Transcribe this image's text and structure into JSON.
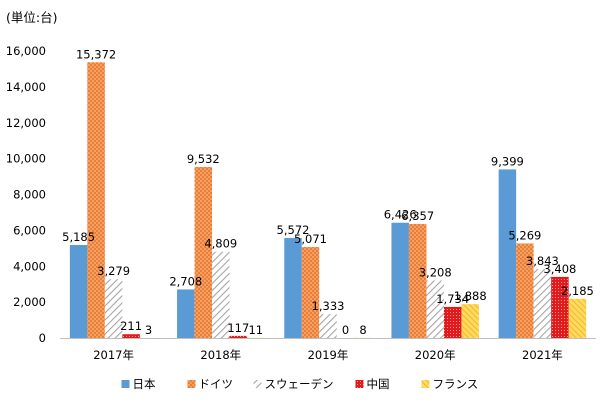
{
  "chart_data": {
    "type": "bar",
    "unit_label": "(単位:台)",
    "categories": [
      "2017年",
      "2018年",
      "2019年",
      "2020年",
      "2021年"
    ],
    "series": [
      {
        "name": "日本",
        "color": "#5b9bd5",
        "pattern": "solid",
        "values": [
          5185,
          2708,
          5572,
          6426,
          9399
        ],
        "labels": [
          "5,185",
          "2,708",
          "5,572",
          "6,426",
          "9,399"
        ]
      },
      {
        "name": "ドイツ",
        "color": "#ed7d31",
        "pattern": "dots",
        "values": [
          15372,
          9532,
          5071,
          6357,
          5269
        ],
        "labels": [
          "15,372",
          "9,532",
          "5,071",
          "6,357",
          "5,269"
        ]
      },
      {
        "name": "スウェーデン",
        "color": "#a5a5a5",
        "pattern": "diagonal",
        "values": [
          3279,
          4809,
          1333,
          3208,
          3843
        ],
        "labels": [
          "3,279",
          "4,809",
          "1,333",
          "3,208",
          "3,843"
        ]
      },
      {
        "name": "中国",
        "color": "#e31a1c",
        "pattern": "grid",
        "values": [
          211,
          117,
          0,
          1734,
          3408
        ],
        "labels": [
          "211",
          "117",
          "0",
          "1,734",
          "3,408"
        ]
      },
      {
        "name": "フランス",
        "color": "#ffc000",
        "pattern": "hatch",
        "values": [
          3,
          11,
          8,
          1888,
          2185
        ],
        "labels": [
          "3",
          "11",
          "8",
          "1,888",
          "2,185"
        ]
      }
    ],
    "y_ticks": [
      0,
      2000,
      4000,
      6000,
      8000,
      10000,
      12000,
      14000,
      16000
    ],
    "y_tick_labels": [
      "0",
      "2,000",
      "4,000",
      "6,000",
      "8,000",
      "10,000",
      "12,000",
      "14,000",
      "16,000"
    ],
    "ylim": [
      0,
      16000
    ],
    "grid": false,
    "legend_position": "bottom"
  }
}
